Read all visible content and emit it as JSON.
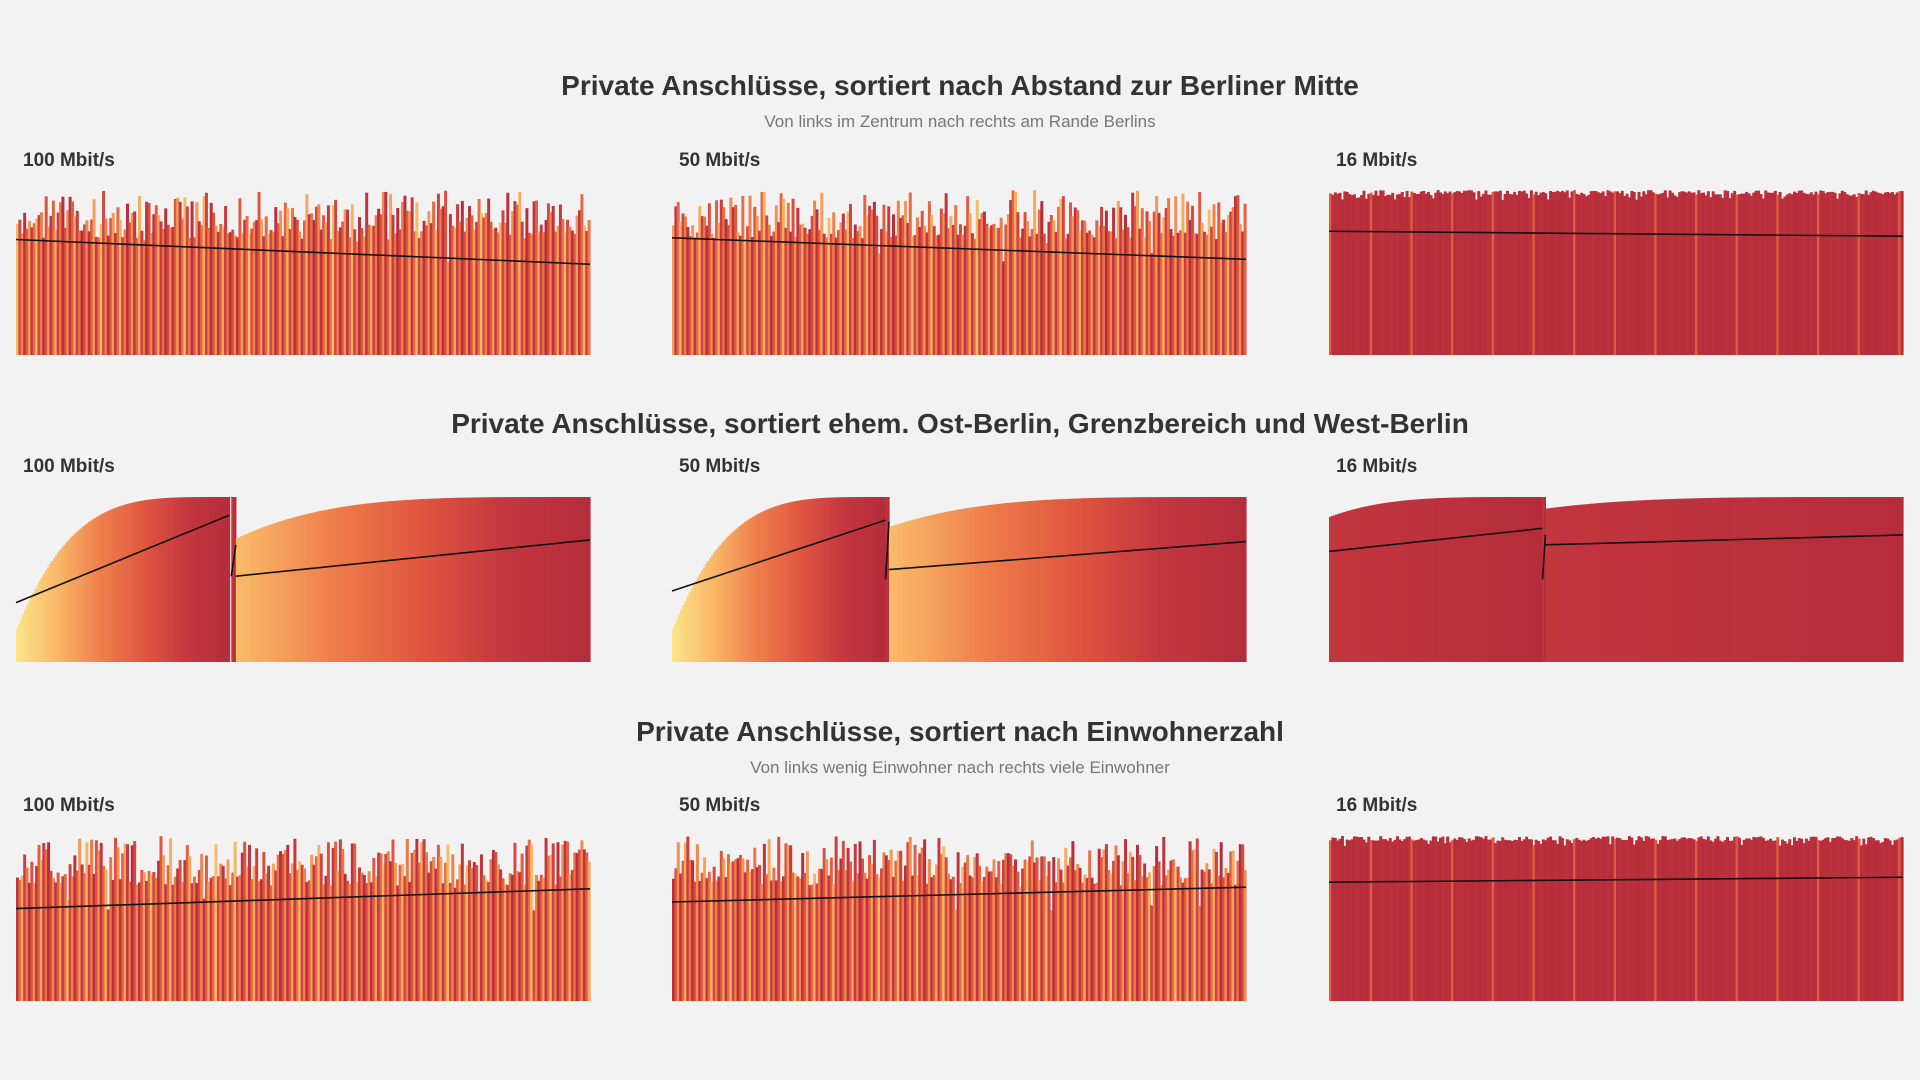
{
  "colors": {
    "background": "#f2f2f2",
    "scale": [
      "#fde48a",
      "#f9b566",
      "#ee7e4c",
      "#e0573f",
      "#c4373f",
      "#b52d3b"
    ],
    "trend_line": "#111111"
  },
  "sections": [
    {
      "title": "Private Anschlüsse, sortiert nach Abstand zur Berliner Mitte",
      "subtitle": "Von links im Zentrum nach rechts am Rande Berlins"
    },
    {
      "title": "Private Anschlüsse, sortiert ehem. Ost-Berlin, Grenzbereich und West-Berlin",
      "subtitle": ""
    },
    {
      "title": "Private Anschlüsse, sortiert nach Einwohnerzahl",
      "subtitle": "Von links wenig Einwohner nach rechts viele Einwohner"
    }
  ],
  "chart_data": [
    {
      "type": "bar",
      "section": 0,
      "title": "100 Mbit/s",
      "ylim": [
        0,
        100
      ],
      "order": "random",
      "n": 240,
      "color_scale": [
        15,
        100
      ],
      "base_mean": 72,
      "base_spread": 18,
      "start_trend": 70,
      "end_trend": 55,
      "min_value": 15,
      "trend": [
        {
          "x": [
            0,
            1
          ],
          "y": [
            70,
            55
          ]
        }
      ]
    },
    {
      "type": "bar",
      "section": 0,
      "title": "50 Mbit/s",
      "ylim": [
        0,
        100
      ],
      "order": "random",
      "n": 240,
      "color_scale": [
        15,
        100
      ],
      "base_mean": 75,
      "base_spread": 17,
      "start_trend": 71,
      "end_trend": 58,
      "min_value": 15,
      "trend": [
        {
          "x": [
            0,
            1
          ],
          "y": [
            71,
            58
          ]
        }
      ]
    },
    {
      "type": "bar",
      "section": 0,
      "title": "16 Mbit/s",
      "ylim": [
        0,
        100
      ],
      "order": "random",
      "n": 240,
      "color_scale": [
        15,
        100
      ],
      "base_mean": 95,
      "base_spread": 4,
      "start_trend": 75,
      "end_trend": 72,
      "min_value": 60,
      "trend": [
        {
          "x": [
            0,
            1
          ],
          "y": [
            75,
            72
          ]
        }
      ]
    },
    {
      "type": "bar",
      "section": 1,
      "title": "100 Mbit/s",
      "ylim": [
        0,
        100
      ],
      "order": "sorted",
      "color_scale": [
        15,
        100
      ],
      "segments": [
        {
          "x0": 0,
          "x1": 0.372,
          "start": 20,
          "end": 100,
          "trend": [
            36,
            89
          ]
        },
        {
          "x0": 0.375,
          "x1": 0.383,
          "start": 100,
          "end": 100,
          "trend": [
            52,
            71
          ]
        },
        {
          "x0": 0.383,
          "x1": 1,
          "start": 75,
          "end": 100,
          "trend": [
            52,
            74
          ]
        }
      ]
    },
    {
      "type": "bar",
      "section": 1,
      "title": "50 Mbit/s",
      "ylim": [
        0,
        100
      ],
      "order": "sorted",
      "color_scale": [
        15,
        100
      ],
      "segments": [
        {
          "x0": 0,
          "x1": 0.372,
          "start": 20,
          "end": 100,
          "trend": [
            43,
            86
          ]
        },
        {
          "x0": 0.372,
          "x1": 0.378,
          "start": 100,
          "end": 100,
          "trend": [
            50,
            85
          ]
        },
        {
          "x0": 0.378,
          "x1": 1,
          "start": 82,
          "end": 100,
          "trend": [
            56,
            73
          ]
        }
      ]
    },
    {
      "type": "bar",
      "section": 1,
      "title": "16 Mbit/s",
      "ylim": [
        0,
        100
      ],
      "order": "sorted",
      "color_scale": [
        15,
        100
      ],
      "segments": [
        {
          "x0": 0,
          "x1": 0.372,
          "start": 88,
          "end": 100,
          "trend": [
            67,
            81
          ]
        },
        {
          "x0": 0.372,
          "x1": 0.377,
          "start": 100,
          "end": 100,
          "trend": [
            50,
            77
          ]
        },
        {
          "x0": 0.377,
          "x1": 1,
          "start": 93,
          "end": 100,
          "trend": [
            71,
            77
          ]
        }
      ]
    },
    {
      "type": "bar",
      "section": 2,
      "title": "100 Mbit/s",
      "ylim": [
        0,
        100
      ],
      "order": "random",
      "n": 240,
      "color_scale": [
        15,
        100
      ],
      "base_mean": 72,
      "base_spread": 18,
      "start_trend": 56,
      "end_trend": 68,
      "min_value": 15,
      "trend": [
        {
          "x": [
            0,
            1
          ],
          "y": [
            56,
            68
          ]
        }
      ]
    },
    {
      "type": "bar",
      "section": 2,
      "title": "50 Mbit/s",
      "ylim": [
        0,
        100
      ],
      "order": "random",
      "n": 240,
      "color_scale": [
        15,
        100
      ],
      "base_mean": 75,
      "base_spread": 17,
      "start_trend": 60,
      "end_trend": 69,
      "min_value": 15,
      "trend": [
        {
          "x": [
            0,
            1
          ],
          "y": [
            60,
            69
          ]
        }
      ]
    },
    {
      "type": "bar",
      "section": 2,
      "title": "16 Mbit/s",
      "ylim": [
        0,
        100
      ],
      "order": "random",
      "n": 240,
      "color_scale": [
        15,
        100
      ],
      "base_mean": 95,
      "base_spread": 4,
      "start_trend": 72,
      "end_trend": 75,
      "min_value": 60,
      "trend": [
        {
          "x": [
            0,
            1
          ],
          "y": [
            72,
            75
          ]
        }
      ]
    }
  ]
}
